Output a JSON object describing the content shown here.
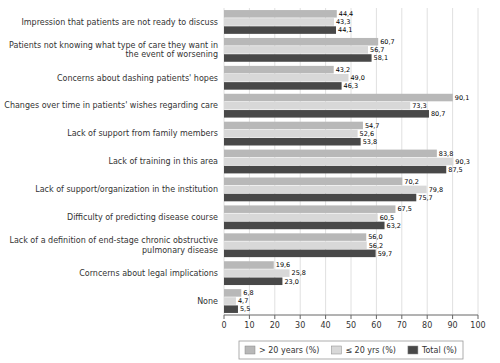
{
  "chart_data": {
    "type": "bar",
    "orientation": "horizontal",
    "categories": [
      "None",
      "Corncerns about legal implications",
      "Lack of a definition of end-stage chronic obstructive\npulmonary disease",
      "Difficulty of predicting disease course",
      "Lack of support/organization in the institution",
      "Lack of training in this area",
      "Lack of support from family members",
      "Changes over time in patients' wishes regarding care",
      "Concerns about dashing patients' hopes",
      "Patients not knowing what type of care they want in\nthe event of worsening",
      "Impression that patients are not ready to discuss"
    ],
    "series": [
      {
        "name": "> 20 years (%)",
        "color": "#b8b8b8",
        "values": [
          6.8,
          19.6,
          56.0,
          67.5,
          70.2,
          83.8,
          54.7,
          90.1,
          43.2,
          60.7,
          44.4
        ],
        "value_labels": [
          "6,8",
          "19,6",
          "56,0",
          "67,5",
          "70,2",
          "83,8",
          "54,7",
          "90,1",
          "43,2",
          "60,7",
          "44,4"
        ]
      },
      {
        "name": "≤ 20 yrs (%)",
        "color": "#d8d8d8",
        "values": [
          4.7,
          25.8,
          56.2,
          60.5,
          79.8,
          90.3,
          52.6,
          73.3,
          49.0,
          56.7,
          43.3
        ],
        "value_labels": [
          "4,7",
          "25,8",
          "56,2",
          "60,5",
          "79,8",
          "90,3",
          "52,6",
          "73,3",
          "49,0",
          "56,7",
          "43,3"
        ]
      },
      {
        "name": "Total (%)",
        "color": "#484848",
        "values": [
          5.5,
          23.0,
          59.7,
          63.2,
          75.7,
          87.5,
          53.8,
          80.7,
          46.3,
          58.1,
          44.1
        ],
        "value_labels": [
          "5,5",
          "23,0",
          "59,7",
          "63,2",
          "75,7",
          "87,5",
          "53,8",
          "80,7",
          "46,3",
          "58,1",
          "44,1"
        ]
      }
    ],
    "xlim": [
      0,
      100
    ],
    "xticks": [
      0,
      10,
      20,
      30,
      40,
      50,
      60,
      70,
      80,
      90,
      100
    ],
    "grid": true,
    "legend": "bottom",
    "data_labels": true
  }
}
